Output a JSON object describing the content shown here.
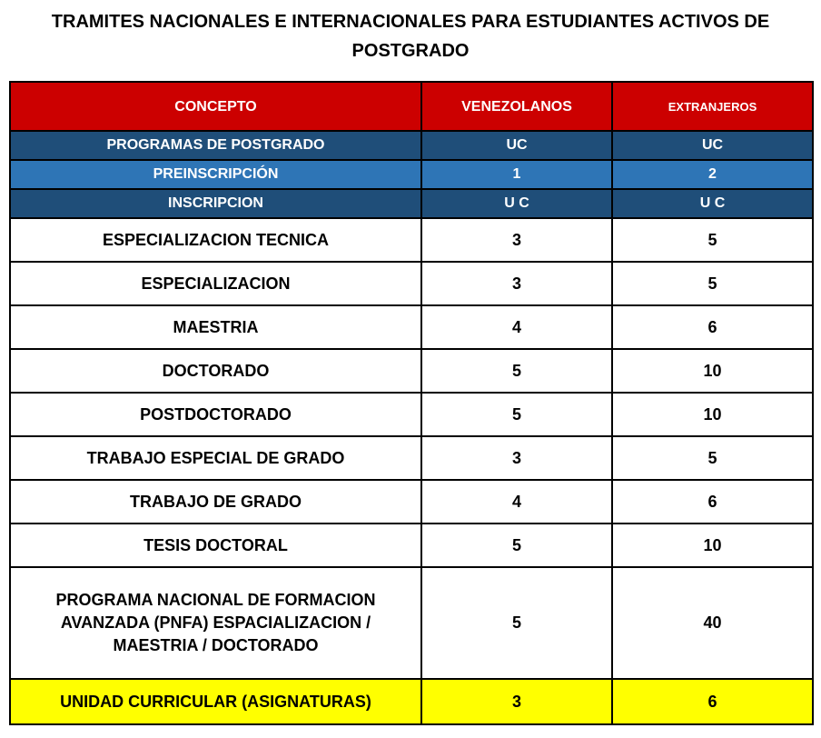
{
  "title": "TRAMITES NACIONALES E INTERNACIONALES PARA ESTUDIANTES ACTIVOS DE POSTGRADO",
  "table": {
    "header": [
      "CONCEPTO",
      "VENEZOLANOS",
      "EXTRANJEROS"
    ],
    "rows": [
      [
        "PROGRAMAS DE POSTGRADO",
        "UC",
        "UC"
      ],
      [
        "PREINSCRIPCIÓN",
        1,
        2
      ],
      [
        "INSCRIPCION",
        "U C",
        "U C"
      ],
      [
        "ESPECIALIZACION TECNICA",
        3,
        5
      ],
      [
        "ESPECIALIZACION",
        3,
        5
      ],
      [
        "MAESTRIA",
        4,
        6
      ],
      [
        "DOCTORADO",
        5,
        10
      ],
      [
        "POSTDOCTORADO",
        5,
        10
      ],
      [
        "TRABAJO ESPECIAL DE GRADO",
        3,
        5
      ],
      [
        "TRABAJO DE GRADO",
        4,
        6
      ],
      [
        "TESIS DOCTORAL",
        5,
        10
      ],
      [
        "PROGRAMA NACIONAL DE FORMACION AVANZADA (PNFA) ESPACIALIZACION / MAESTRIA / DOCTORADO",
        5,
        40
      ],
      [
        "UNIDAD CURRICULAR (ASIGNATURAS)",
        3,
        6
      ]
    ]
  }
}
